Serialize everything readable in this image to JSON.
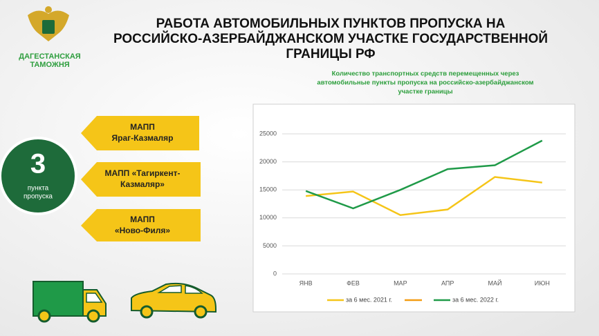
{
  "header": {
    "logo": [
      "ДАГЕСТАНСКАЯ",
      "ТАМОЖНЯ"
    ],
    "title": [
      "РАБОТА АВТОМОБИЛЬНЫХ ПУНКТОВ ПРОПУСКА НА",
      "РОССИЙСКО-АЗЕРБАЙДЖАНСКОМ УЧАСТКЕ ГОСУДАРСТВЕННОЙ",
      "ГРАНИЦЫ РФ"
    ]
  },
  "sidebar": {
    "count": "3",
    "count_label": [
      "пункта",
      "пропуска"
    ],
    "checkpoints": [
      [
        "МАПП",
        "Яраг-Казмаляр"
      ],
      [
        "МАПП «Тагиркент-",
        "Казмаляр»"
      ],
      [
        "МАПП",
        "«Ново-Филя»"
      ]
    ]
  },
  "chart_data": {
    "type": "line",
    "title": [
      "Количество транспортных средств перемещенных через",
      "автомобильные пункты пропуска на российско-азербайджанском",
      "участке границы"
    ],
    "categories": [
      "ЯНВ",
      "ФЕВ",
      "МАР",
      "АПР",
      "МАЙ",
      "ИЮН"
    ],
    "series": [
      {
        "name": "за 6 мес. 2021 г.",
        "color": "#f5c518",
        "values": [
          13900,
          14700,
          10500,
          11500,
          17300,
          16300
        ]
      },
      {
        "name": "за 6 мес. 2022 г.",
        "color": "#1f9a48",
        "values": [
          14800,
          11700,
          15000,
          18700,
          19400,
          23800
        ]
      }
    ],
    "ylim": [
      0,
      25000
    ],
    "yticks": [
      0,
      5000,
      10000,
      15000,
      20000,
      25000
    ],
    "grid": true,
    "legend": "bottom"
  }
}
